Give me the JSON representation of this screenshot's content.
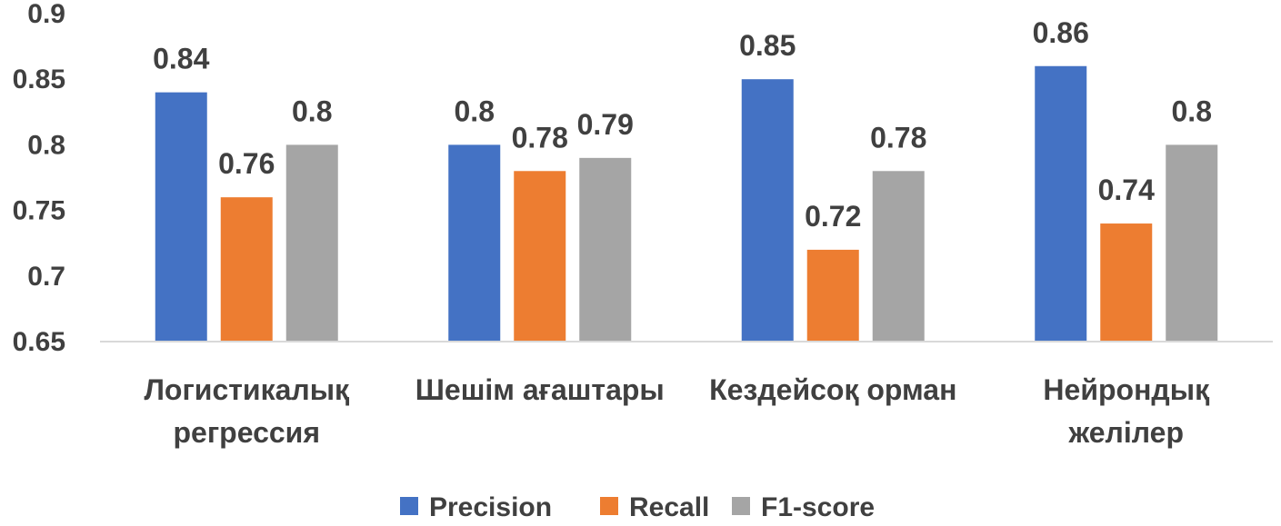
{
  "chart_data": {
    "type": "bar",
    "categories": [
      [
        "Логистикалық",
        "регрессия"
      ],
      [
        "Шешім ағаштары"
      ],
      [
        "Кездейсоқ орман"
      ],
      [
        "Нейрондық",
        "желілер"
      ]
    ],
    "series": [
      {
        "name": "Precision",
        "color": "#4472C4",
        "values": [
          0.84,
          0.8,
          0.85,
          0.86
        ],
        "labels": [
          "0.84",
          "0.8",
          "0.85",
          "0.86"
        ]
      },
      {
        "name": "Recall",
        "color": "#ED7D31",
        "values": [
          0.76,
          0.78,
          0.72,
          0.74
        ],
        "labels": [
          "0.76",
          "0.78",
          "0.72",
          "0.74"
        ]
      },
      {
        "name": "F1-score",
        "color": "#A5A5A5",
        "values": [
          0.8,
          0.79,
          0.78,
          0.8
        ],
        "labels": [
          "0.8",
          "0.79",
          "0.78",
          "0.8"
        ]
      }
    ],
    "ylim": [
      0.65,
      0.9
    ],
    "yticks": [
      {
        "value": 0.65,
        "label": "0.65"
      },
      {
        "value": 0.7,
        "label": "0.7"
      },
      {
        "value": 0.75,
        "label": "0.75"
      },
      {
        "value": 0.8,
        "label": "0.8"
      },
      {
        "value": 0.85,
        "label": "0.85"
      },
      {
        "value": 0.9,
        "label": "0.9"
      }
    ],
    "grid": false,
    "legend_position": "bottom",
    "axis_color": "#D9D9D9"
  }
}
